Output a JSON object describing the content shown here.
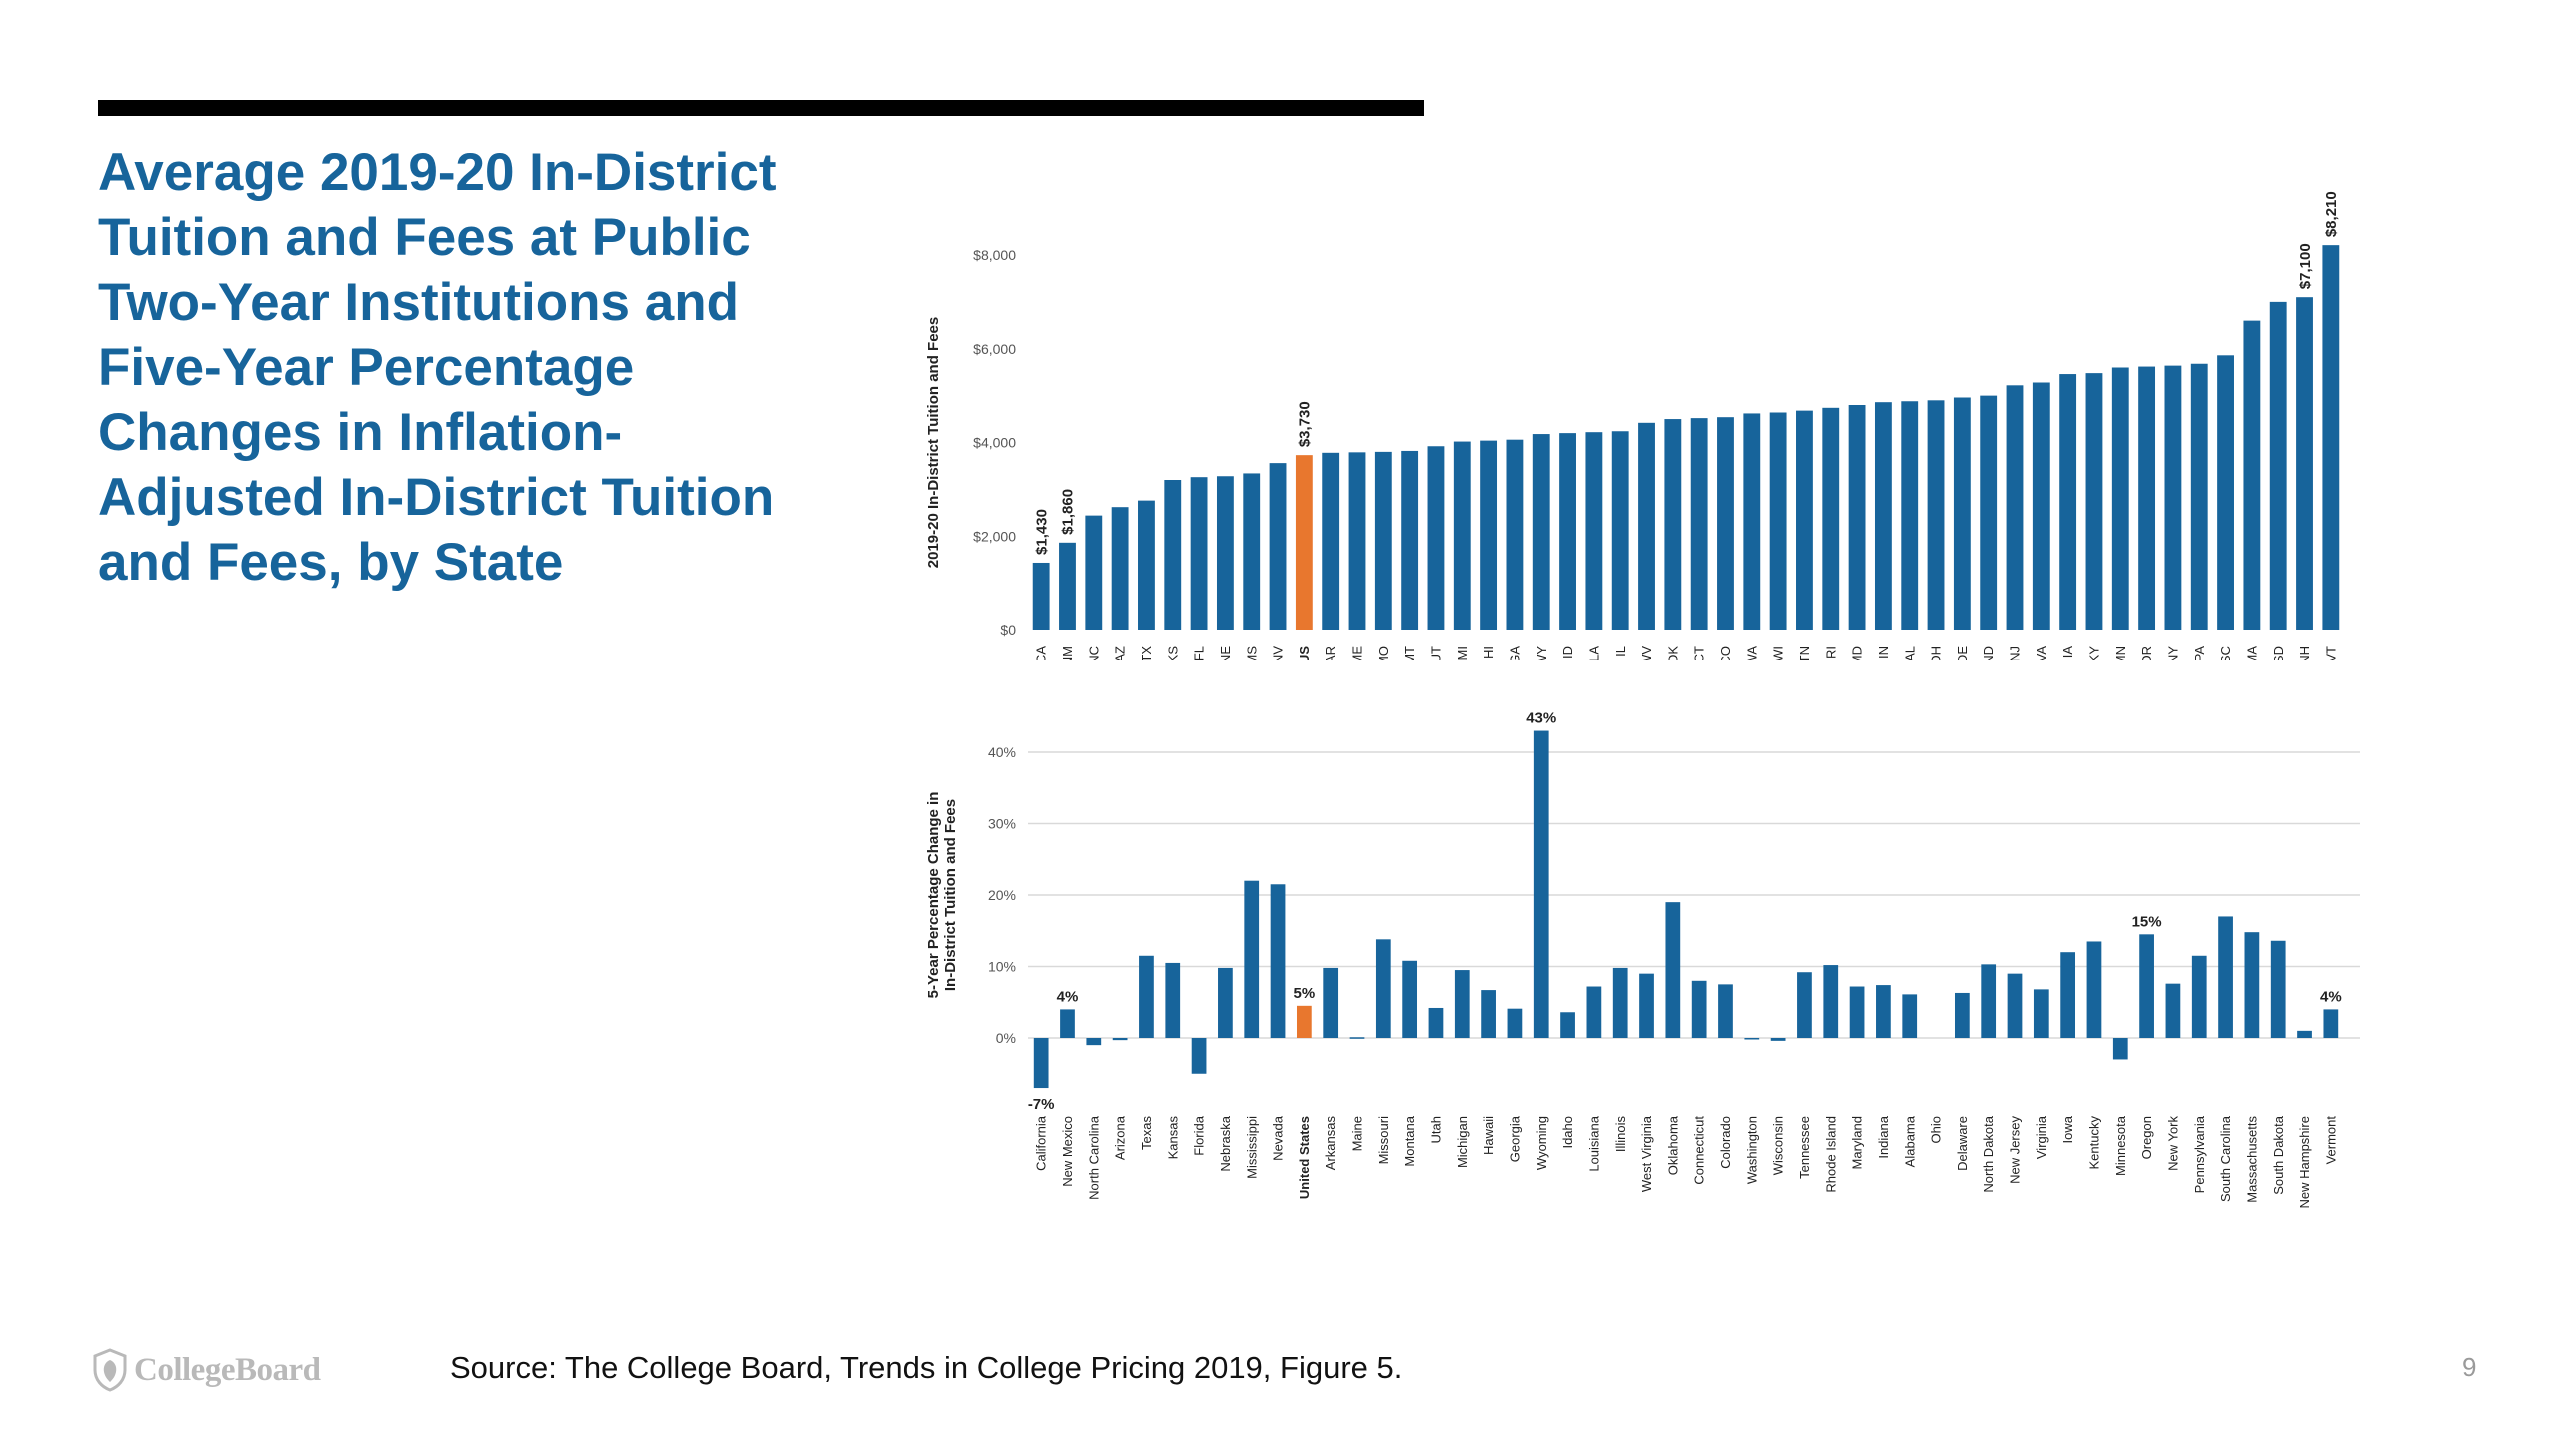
{
  "slide": {
    "title": "Average 2019-20 In-District Tuition and Fees at Public Two-Year Institutions and Five-Year Percentage Changes in Inflation-Adjusted In-District Tuition and Fees, by State",
    "source": "Source: The College Board, Trends in College Pricing 2019, Figure 5.",
    "page_number": "9",
    "logo_text": "CollegeBoard"
  },
  "colors": {
    "title": "#17649b",
    "bar": "#17649b",
    "highlight": "#e8772e",
    "grid": "#d9d9d9",
    "axis_text": "#555555"
  },
  "icons": {
    "logo": "acorn-shield-icon"
  },
  "chart_data": [
    {
      "type": "bar",
      "ylabel": "2019-20 In-District Tuition and Fees",
      "ylim": [
        0,
        8000
      ],
      "yticks": [
        0,
        2000,
        4000,
        6000,
        8000
      ],
      "ytick_labels": [
        "$0",
        "$2,000",
        "$4,000",
        "$6,000",
        "$8,000"
      ],
      "grid": false,
      "categories": [
        "CA",
        "NM",
        "NC",
        "AZ",
        "TX",
        "KS",
        "FL",
        "NE",
        "MS",
        "NV",
        "US",
        "AR",
        "ME",
        "MO",
        "MT",
        "UT",
        "MI",
        "HI",
        "GA",
        "WY",
        "ID",
        "LA",
        "IL",
        "WV",
        "OK",
        "CT",
        "CO",
        "WA",
        "WI",
        "TN",
        "RI",
        "MD",
        "IN",
        "AL",
        "OH",
        "DE",
        "ND",
        "NJ",
        "VA",
        "IA",
        "KY",
        "MN",
        "OR",
        "NY",
        "PA",
        "SC",
        "MA",
        "SD",
        "NH",
        "VT"
      ],
      "values": [
        1430,
        1860,
        2440,
        2620,
        2760,
        3200,
        3260,
        3280,
        3340,
        3560,
        3730,
        3780,
        3790,
        3800,
        3820,
        3920,
        4020,
        4040,
        4060,
        4180,
        4200,
        4220,
        4240,
        4420,
        4500,
        4520,
        4540,
        4620,
        4640,
        4680,
        4740,
        4800,
        4860,
        4880,
        4900,
        4960,
        5000,
        5220,
        5280,
        5460,
        5480,
        5600,
        5620,
        5640,
        5680,
        5860,
        6600,
        7000,
        7100,
        8210
      ],
      "data_labels": [
        {
          "category": "CA",
          "text": "$1,430"
        },
        {
          "category": "NM",
          "text": "$1,860"
        },
        {
          "category": "US",
          "text": "$3,730"
        },
        {
          "category": "NH",
          "text": "$7,100"
        },
        {
          "category": "VT",
          "text": "$8,210"
        }
      ],
      "highlight": "US"
    },
    {
      "type": "bar",
      "ylabel": "5-Year Percentage Change in In-District Tuition and Fees",
      "ylim": [
        -10,
        45
      ],
      "yticks": [
        0,
        10,
        20,
        30,
        40
      ],
      "ytick_labels": [
        "0%",
        "10%",
        "20%",
        "30%",
        "40%"
      ],
      "grid": true,
      "categories": [
        "California",
        "New Mexico",
        "North Carolina",
        "Arizona",
        "Texas",
        "Kansas",
        "Florida",
        "Nebraska",
        "Mississippi",
        "Nevada",
        "United States",
        "Arkansas",
        "Maine",
        "Missouri",
        "Montana",
        "Utah",
        "Michigan",
        "Hawaii",
        "Georgia",
        "Wyoming",
        "Idaho",
        "Louisiana",
        "Illinois",
        "West Virginia",
        "Oklahoma",
        "Connecticut",
        "Colorado",
        "Washington",
        "Wisconsin",
        "Tennessee",
        "Rhode Island",
        "Maryland",
        "Indiana",
        "Alabama",
        "Ohio",
        "Delaware",
        "North Dakota",
        "New Jersey",
        "Virginia",
        "Iowa",
        "Kentucky",
        "Minnesota",
        "Oregon",
        "New York",
        "Pennsylvania",
        "South Carolina",
        "Massachusetts",
        "South Dakota",
        "New Hampshire",
        "Vermont"
      ],
      "values": [
        -7,
        4,
        -1,
        -0.3,
        11.5,
        10.5,
        -5,
        9.8,
        22,
        21.5,
        4.5,
        9.8,
        0.1,
        13.8,
        10.8,
        4.2,
        9.5,
        6.7,
        4.1,
        43,
        3.6,
        7.2,
        9.8,
        9,
        19,
        8,
        7.5,
        -0.2,
        -0.4,
        9.2,
        10.2,
        7.2,
        7.4,
        6.1,
        0,
        6.3,
        10.3,
        9,
        6.8,
        12,
        13.5,
        -3,
        14.5,
        7.6,
        11.5,
        17,
        14.8,
        13.6,
        1,
        4
      ],
      "data_labels": [
        {
          "category": "California",
          "text": "-7%"
        },
        {
          "category": "New Mexico",
          "text": "4%"
        },
        {
          "category": "United States",
          "text": "5%"
        },
        {
          "category": "Wyoming",
          "text": "43%"
        },
        {
          "category": "Oregon",
          "text": "15%"
        },
        {
          "category": "Vermont",
          "text": "4%"
        }
      ],
      "highlight": "United States"
    }
  ]
}
